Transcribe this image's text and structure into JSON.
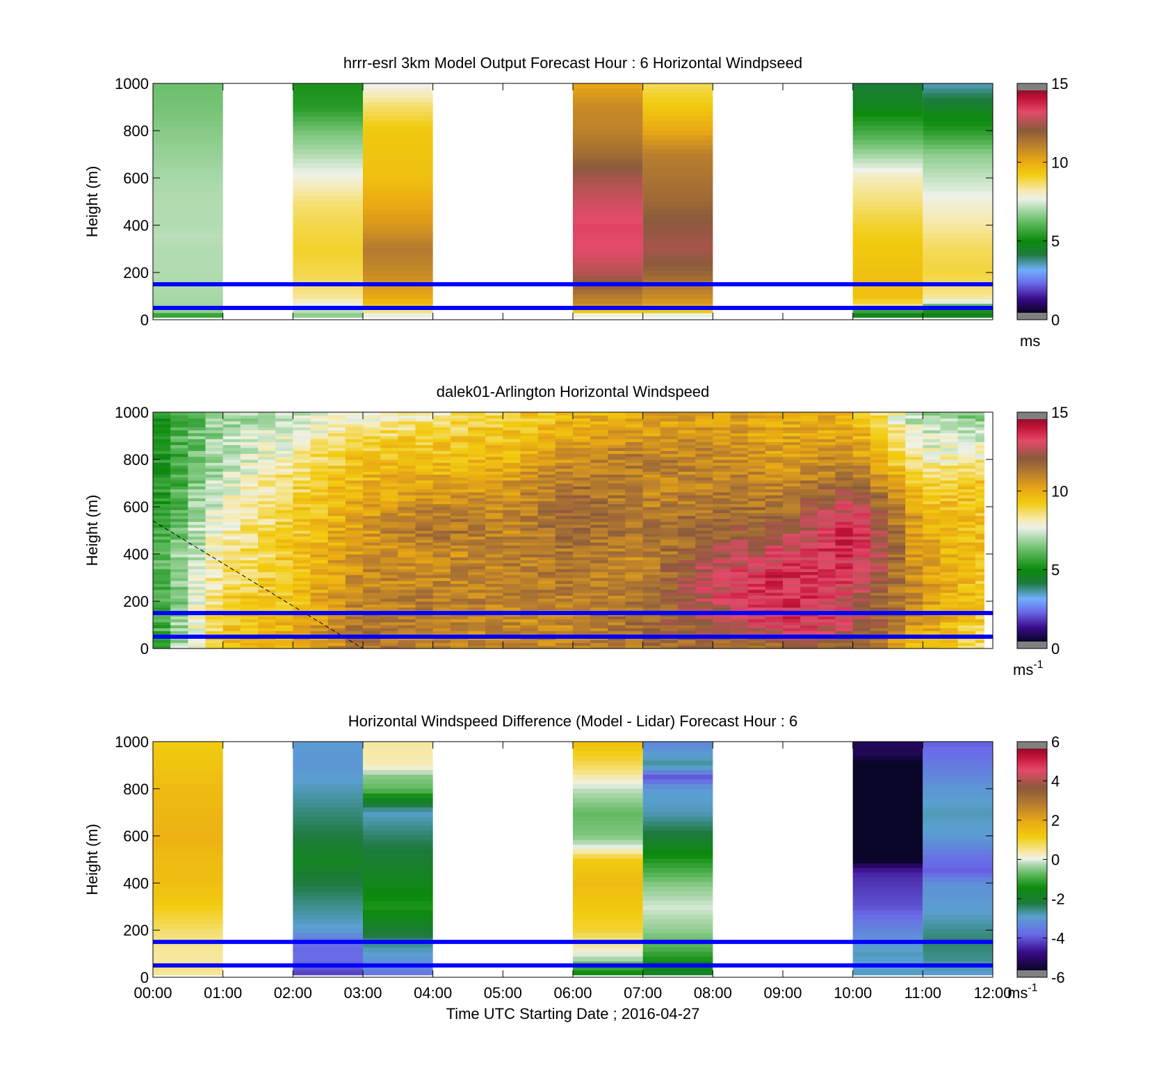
{
  "colormaps": {
    "speed": [
      [
        0.0,
        "#0a0628"
      ],
      [
        0.06,
        "#3a0a8a"
      ],
      [
        0.13,
        "#6a6ae8"
      ],
      [
        0.19,
        "#6fb0ff"
      ],
      [
        0.26,
        "#1e7a3e"
      ],
      [
        0.32,
        "#0c8a0c"
      ],
      [
        0.4,
        "#5cb85c"
      ],
      [
        0.46,
        "#a8d8a8"
      ],
      [
        0.51,
        "#eef2ea"
      ],
      [
        0.55,
        "#f6e9a8"
      ],
      [
        0.62,
        "#f2cc10"
      ],
      [
        0.68,
        "#e9a814"
      ],
      [
        0.76,
        "#b47a30"
      ],
      [
        0.82,
        "#8a5a3c"
      ],
      [
        0.9,
        "#e34a6a"
      ],
      [
        0.96,
        "#c4143a"
      ],
      [
        1.0,
        "#8e0c28"
      ]
    ],
    "diff": [
      [
        0.0,
        "#0a0628"
      ],
      [
        0.08,
        "#3a0a8a"
      ],
      [
        0.16,
        "#6a6ae8"
      ],
      [
        0.24,
        "#5aa0d0"
      ],
      [
        0.3,
        "#1e7a3e"
      ],
      [
        0.37,
        "#0c8a0c"
      ],
      [
        0.43,
        "#5cb85c"
      ],
      [
        0.48,
        "#b8dcb8"
      ],
      [
        0.5,
        "#eef2ea"
      ],
      [
        0.53,
        "#f6e9a8"
      ],
      [
        0.6,
        "#f2cc10"
      ],
      [
        0.67,
        "#e9a814"
      ],
      [
        0.75,
        "#b47a30"
      ],
      [
        0.82,
        "#8a5a3c"
      ],
      [
        0.9,
        "#e34a6a"
      ],
      [
        0.96,
        "#c4143a"
      ],
      [
        1.0,
        "#8e0c28"
      ]
    ]
  },
  "chart_data": [
    {
      "type": "heatmap",
      "title": "hrrr-esrl 3km Model Output   Forecast Hour : 6 Horizontal Windpseed",
      "ylabel": "Height (m)",
      "ylim": [
        0,
        1000
      ],
      "yticks": [
        "0",
        "200",
        "400",
        "600",
        "800",
        "1000"
      ],
      "xlim": [
        0,
        12
      ],
      "x_ticklabels": [],
      "colorbar": {
        "min": 0,
        "max": 15,
        "ticks": [
          "0",
          "5",
          "10",
          "15"
        ],
        "unit": "ms",
        "unit_sup": ""
      },
      "cmap": "speed",
      "reference_lines_m": [
        50,
        150
      ],
      "reference_line_color": "#0000ff",
      "columns": [
        {
          "t0": 0,
          "t1": 1,
          "heights": [
            20,
            40,
            60,
            100,
            200,
            300,
            350,
            400,
            500,
            600,
            700,
            800,
            900,
            1000
          ],
          "values": [
            5.5,
            6.6,
            6.8,
            6.9,
            7.0,
            7.0,
            7.1,
            7.0,
            7.0,
            6.9,
            6.7,
            6.5,
            6.3,
            6.2
          ]
        },
        {
          "t0": 2,
          "t1": 3,
          "heights": [
            20,
            60,
            100,
            200,
            300,
            400,
            500,
            600,
            700,
            800,
            900,
            1000
          ],
          "values": [
            6.6,
            7.6,
            8.4,
            8.9,
            9.1,
            8.9,
            8.6,
            7.8,
            7.0,
            6.3,
            5.2,
            5.0
          ]
        },
        {
          "t0": 3,
          "t1": 4,
          "heights": [
            20,
            60,
            100,
            200,
            300,
            400,
            500,
            600,
            700,
            800,
            900,
            1000
          ],
          "values": [
            7.6,
            9.5,
            10.2,
            11.0,
            11.4,
            10.6,
            10.1,
            9.6,
            9.5,
            9.4,
            8.7,
            7.6
          ]
        },
        {
          "t0": 6,
          "t1": 7,
          "heights": [
            20,
            40,
            60,
            100,
            200,
            300,
            400,
            500,
            600,
            700,
            800,
            900,
            1000
          ],
          "values": [
            7.8,
            9.5,
            10.8,
            11.4,
            12.9,
            13.5,
            13.6,
            13.2,
            12.7,
            11.8,
            11.2,
            11.0,
            10.2
          ]
        },
        {
          "t0": 7,
          "t1": 8,
          "heights": [
            20,
            40,
            60,
            100,
            200,
            300,
            400,
            500,
            600,
            700,
            800,
            900,
            1000
          ],
          "values": [
            7.6,
            9.5,
            10.3,
            11.0,
            12.0,
            12.7,
            12.4,
            11.9,
            11.6,
            11.3,
            10.2,
            9.4,
            8.8
          ]
        },
        {
          "t0": 10,
          "t1": 11,
          "heights": [
            20,
            40,
            60,
            100,
            200,
            300,
            400,
            500,
            600,
            700,
            800,
            900,
            1000
          ],
          "values": [
            4.5,
            5.5,
            8.7,
            9.6,
            9.6,
            9.4,
            9.1,
            8.6,
            8.1,
            6.8,
            5.6,
            4.5,
            4.0
          ]
        },
        {
          "t0": 11,
          "t1": 12,
          "heights": [
            20,
            40,
            60,
            80,
            100,
            200,
            300,
            400,
            500,
            600,
            700,
            800,
            900,
            1000
          ],
          "values": [
            4.5,
            5.0,
            6.2,
            7.6,
            8.4,
            9.0,
            8.8,
            8.3,
            7.8,
            7.2,
            6.6,
            5.2,
            4.3,
            3.2
          ]
        }
      ]
    },
    {
      "type": "heatmap",
      "title": "dalek01-Arlington  Horizontal Windspeed",
      "ylabel": "Height (m)",
      "ylim": [
        0,
        1000
      ],
      "yticks": [
        "0",
        "200",
        "400",
        "600",
        "800",
        "1000"
      ],
      "xlim": [
        0,
        12
      ],
      "x_ticklabels": [],
      "colorbar": {
        "min": 0,
        "max": 15,
        "ticks": [
          "0",
          "5",
          "10",
          "15"
        ],
        "unit": "ms",
        "unit_sup": "-1"
      },
      "cmap": "speed",
      "reference_lines_m": [
        50,
        150
      ],
      "reference_line_color": "#0000ff",
      "dashed_line": [
        [
          0,
          540
        ],
        [
          3,
          0
        ]
      ],
      "time_step_h": 0.25,
      "profile_time_h": [
        0.0,
        1.0,
        2.0,
        3.0,
        4.0,
        5.0,
        6.0,
        7.0,
        8.0,
        9.0,
        10.0,
        11.0,
        11.75
      ],
      "profile_heights_m": [
        0,
        100,
        200,
        300,
        400,
        500,
        600,
        700,
        800,
        900,
        1000
      ],
      "profiles": [
        [
          5.5,
          5.0,
          5.0,
          5.3,
          5.5,
          5.3,
          5.0,
          4.8,
          4.8,
          5.0,
          5.0
        ],
        [
          9.5,
          9.5,
          9.0,
          8.7,
          8.3,
          8.0,
          7.8,
          7.5,
          7.0,
          7.0,
          6.5
        ],
        [
          10.0,
          10.0,
          9.6,
          9.5,
          9.4,
          9.2,
          9.0,
          8.8,
          8.2,
          7.8,
          7.2
        ],
        [
          11.5,
          11.6,
          11.2,
          11.0,
          10.8,
          10.5,
          10.2,
          10.0,
          9.6,
          8.8,
          7.5
        ],
        [
          11.0,
          11.0,
          11.3,
          11.0,
          10.8,
          11.8,
          11.0,
          10.2,
          9.6,
          9.2,
          8.3
        ],
        [
          11.0,
          11.0,
          11.2,
          11.2,
          11.2,
          11.0,
          10.8,
          10.5,
          9.8,
          9.5,
          9.0
        ],
        [
          11.2,
          11.0,
          11.2,
          11.3,
          11.5,
          11.8,
          12.2,
          11.5,
          10.8,
          10.2,
          9.8
        ],
        [
          11.6,
          11.8,
          11.6,
          11.0,
          11.0,
          11.5,
          11.2,
          11.0,
          11.5,
          10.5,
          10.0
        ],
        [
          11.8,
          12.5,
          13.0,
          13.5,
          12.6,
          12.0,
          11.5,
          11.2,
          11.0,
          10.8,
          10.5
        ],
        [
          11.5,
          13.8,
          14.2,
          14.0,
          13.5,
          12.5,
          11.5,
          11.0,
          10.5,
          10.2,
          10.2
        ],
        [
          11.8,
          13.2,
          13.0,
          13.5,
          14.2,
          14.0,
          13.5,
          12.0,
          11.0,
          10.2,
          10.0
        ],
        [
          9.5,
          10.3,
          10.6,
          10.6,
          10.2,
          10.3,
          9.8,
          9.2,
          8.0,
          7.3,
          6.5
        ],
        [
          8.6,
          9.2,
          9.5,
          9.5,
          9.6,
          9.6,
          9.5,
          9.5,
          8.2,
          7.3,
          6.5
        ]
      ]
    },
    {
      "type": "heatmap",
      "title": "Horizontal Windspeed Difference (Model - Lidar) Forecast Hour : 6",
      "ylabel": "Height (m)",
      "xlabel": "Time UTC  Starting Date ; 2016-04-27",
      "ylim": [
        0,
        1000
      ],
      "yticks": [
        "0",
        "200",
        "400",
        "600",
        "800",
        "1000"
      ],
      "xlim": [
        0,
        12
      ],
      "x_ticklabels": [
        "00:00",
        "01:00",
        "02:00",
        "03:00",
        "04:00",
        "05:00",
        "06:00",
        "07:00",
        "08:00",
        "09:00",
        "10:00",
        "11:00",
        "12:00"
      ],
      "colorbar": {
        "min": -6,
        "max": 6,
        "ticks": [
          "-6",
          "-4",
          "-2",
          "0",
          "2",
          "4",
          "6"
        ],
        "unit": "ms",
        "unit_sup": "-1"
      },
      "cmap": "diff",
      "reference_lines_m": [
        50,
        150
      ],
      "reference_line_color": "#0000ff",
      "columns": [
        {
          "t0": 0,
          "t1": 1,
          "heights": [
            0,
            40,
            80,
            150,
            200,
            300,
            400,
            500,
            600,
            700,
            800,
            900,
            1000
          ],
          "values": [
            0.3,
            0.6,
            0.4,
            0.5,
            0.7,
            1.2,
            1.5,
            1.6,
            1.8,
            1.7,
            1.6,
            1.4,
            1.2
          ]
        },
        {
          "t0": 2,
          "t1": 3,
          "heights": [
            0,
            40,
            80,
            120,
            160,
            200,
            300,
            400,
            500,
            600,
            700,
            800,
            900,
            1000
          ],
          "values": [
            -4.6,
            -4.3,
            -4.0,
            -4.1,
            -3.8,
            -3.2,
            -2.8,
            -2.4,
            -1.9,
            -2.4,
            -2.7,
            -3.0,
            -3.3,
            -3.2
          ]
        },
        {
          "t0": 3,
          "t1": 4,
          "heights": [
            0,
            40,
            80,
            120,
            200,
            300,
            400,
            500,
            600,
            700,
            800,
            850,
            900,
            1000
          ],
          "values": [
            -4.0,
            -3.6,
            -3.3,
            -3.0,
            -2.2,
            -1.4,
            -1.8,
            -2.2,
            -2.6,
            -3.1,
            -0.8,
            -0.6,
            0.3,
            0.4
          ]
        },
        {
          "t0": 6,
          "t1": 7,
          "heights": [
            0,
            40,
            80,
            120,
            200,
            300,
            400,
            500,
            550,
            600,
            700,
            800,
            900,
            1000
          ],
          "values": [
            -1.8,
            -1.2,
            -0.3,
            0.2,
            1.0,
            1.3,
            1.6,
            1.2,
            0.0,
            -0.6,
            -0.8,
            -0.2,
            0.8,
            1.5
          ]
        },
        {
          "t0": 7,
          "t1": 8,
          "heights": [
            0,
            40,
            80,
            120,
            200,
            300,
            400,
            500,
            600,
            700,
            800,
            850,
            900,
            1000
          ],
          "values": [
            -2.2,
            -1.8,
            -1.4,
            -1.0,
            -0.5,
            -0.1,
            -0.6,
            -1.4,
            -2.3,
            -3.0,
            -3.2,
            -4.3,
            -2.8,
            -3.6
          ]
        },
        {
          "t0": 10,
          "t1": 11,
          "heights": [
            0,
            60,
            100,
            200,
            300,
            400,
            450,
            500,
            560,
            620,
            700,
            800,
            900,
            950,
            1000
          ],
          "values": [
            -3.0,
            -3.2,
            -3.0,
            -3.6,
            -4.3,
            -4.6,
            -4.8,
            -6.1,
            -6.1,
            -6.1,
            -6.1,
            -6.1,
            -6.1,
            -5.6,
            -5.5
          ]
        },
        {
          "t0": 11,
          "t1": 12,
          "heights": [
            0,
            40,
            80,
            150,
            200,
            300,
            400,
            450,
            500,
            600,
            700,
            800,
            900,
            1000
          ],
          "values": [
            -3.4,
            -3.0,
            -2.8,
            -2.6,
            -2.8,
            -3.2,
            -3.4,
            -4.2,
            -4.0,
            -3.2,
            -3.0,
            -3.3,
            -3.8,
            -4.2
          ]
        }
      ]
    }
  ]
}
